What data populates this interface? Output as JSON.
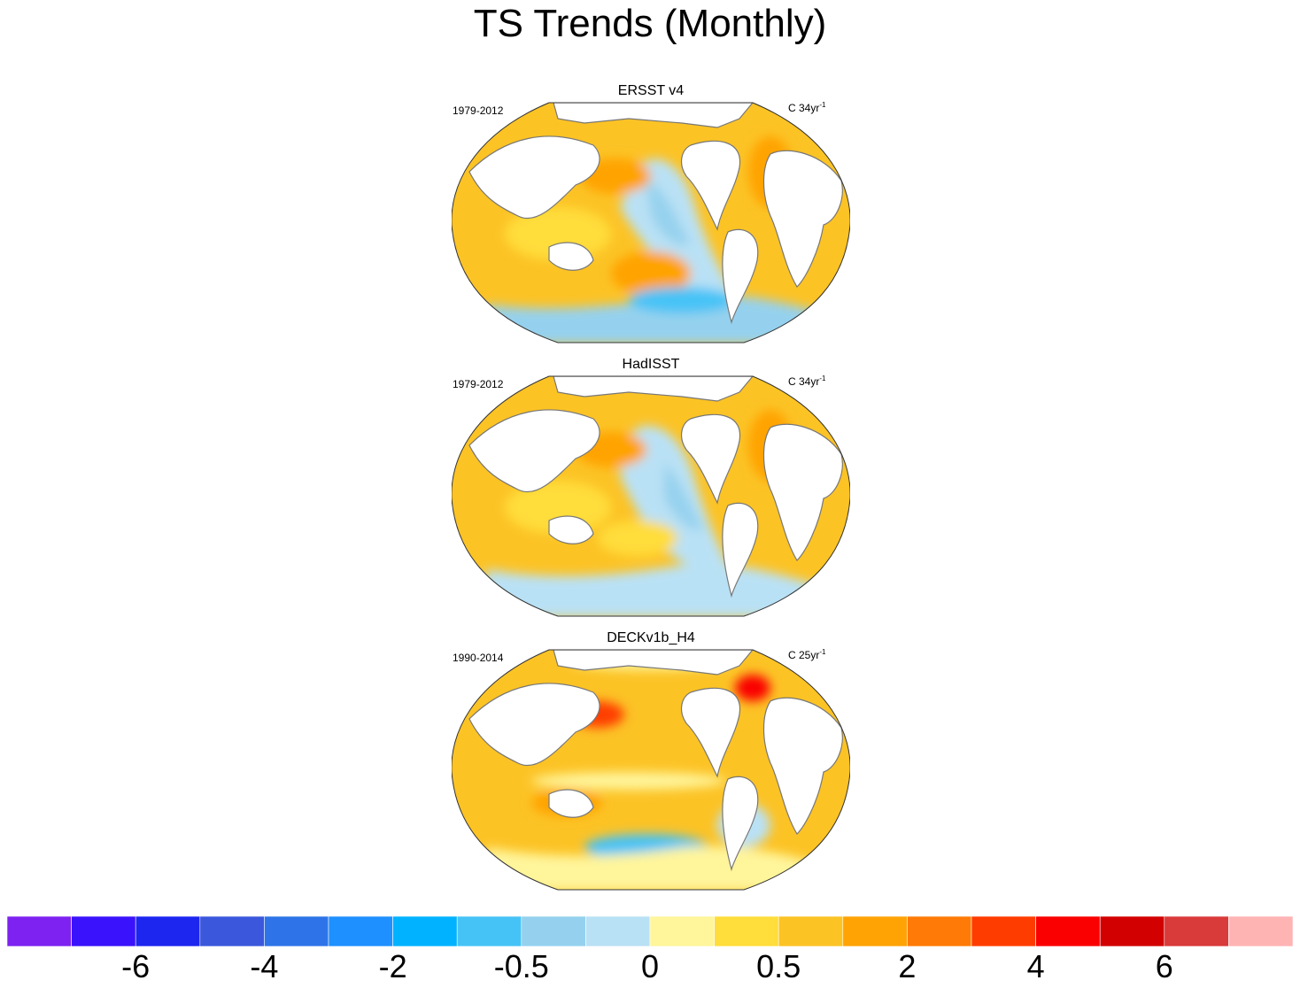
{
  "chart_data": {
    "type": "map",
    "title": "TS Trends (Monthly)",
    "panels": [
      {
        "title": "ERSST v4",
        "period": "1979-2012",
        "units": "C 34yr",
        "units_exp": "-1"
      },
      {
        "title": "HadISST",
        "period": "1979-2012",
        "units": "C 34yr",
        "units_exp": "-1"
      },
      {
        "title": "DECKv1b_H4",
        "period": "1990-2014",
        "units": "C 25yr",
        "units_exp": "-1"
      }
    ],
    "colorbar": {
      "colors": [
        "#7d22f0",
        "#3a12fb",
        "#1d26ef",
        "#3b57dc",
        "#2e74e8",
        "#1e90ff",
        "#00b2ff",
        "#46c3f6",
        "#95d1ee",
        "#b9e1f5",
        "#fff59b",
        "#ffdd3a",
        "#fcc325",
        "#ffa305",
        "#ff7a06",
        "#ff3c00",
        "#fa0000",
        "#d20000",
        "#d93a3a",
        "#ffb4b4"
      ],
      "tick_labels": [
        "-6",
        "-4",
        "-2",
        "-0.5",
        "0",
        "0.5",
        "2",
        "4",
        "6"
      ],
      "tick_boundaries": [
        2,
        4,
        6,
        8,
        10,
        12,
        14,
        16,
        18
      ]
    }
  }
}
